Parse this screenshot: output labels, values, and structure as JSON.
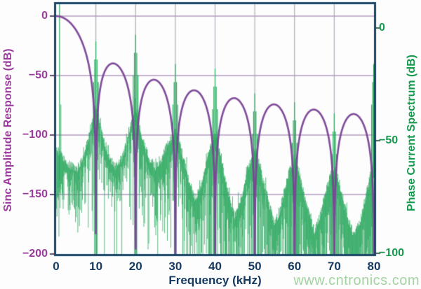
{
  "figure": {
    "watermark": "www.cntronics.com",
    "colors": {
      "plot_border": "#1c4668",
      "vertical_grid": "#a9aeb6",
      "horizontal_grid": "#b29abe",
      "left_text": "#9a3a9c",
      "right_text": "#169a4e",
      "x_text": "#16395f",
      "watermark_text": "#a3d3a2",
      "sinc_curve": "#7a4596",
      "spectrum_curve": "#2ba85e"
    }
  },
  "chart_data": {
    "type": "line",
    "title": "",
    "xlabel": "Frequency (kHz)",
    "xlim": [
      0,
      80
    ],
    "x_ticks": [
      0,
      10,
      20,
      30,
      40,
      50,
      60,
      70,
      80
    ],
    "grid": {
      "vertical_khz": [
        10,
        20,
        30,
        40,
        50,
        60,
        70
      ],
      "horizontal_left_db": [
        0,
        -50,
        -100,
        -150
      ]
    },
    "left_axis": {
      "label": "Sinc Amplitude Response (dB)",
      "ticks": [
        0,
        -50,
        -100,
        -150,
        -200
      ],
      "lim": [
        -200,
        0
      ],
      "color": "#9a3a9c"
    },
    "right_axis": {
      "label": "Phase Current Spectrum (dB)",
      "ticks": [
        0,
        -50,
        -100
      ],
      "lim": [
        -100,
        0
      ],
      "color": "#169a4e"
    },
    "series": [
      {
        "name": "sinc-amplitude-response",
        "axis": "left",
        "color": "#7a4596",
        "model": "sinc_envelope_db",
        "order": 3,
        "null_spacing_khz": 10,
        "null_frequencies_khz": [
          10,
          20,
          30,
          40,
          50,
          60,
          70,
          80
        ],
        "lobe_peaks_db": [
          [
            0,
            0
          ],
          [
            15,
            -40.4
          ],
          [
            25,
            -53.7
          ],
          [
            35,
            -62.4
          ],
          [
            45,
            -69.0
          ],
          [
            55,
            -74.3
          ],
          [
            65,
            -78.7
          ],
          [
            75,
            -82.4
          ]
        ]
      },
      {
        "name": "phase-current-spectrum",
        "axis": "right",
        "color": "#2ba85e",
        "model": "noisy_spectrum",
        "fundamental": {
          "f_khz": 0.85,
          "db": 11
        },
        "harmonics": [
          [
            10,
            -6
          ],
          [
            20,
            -3
          ],
          [
            30,
            -16
          ],
          [
            40,
            -18
          ],
          [
            50,
            -29
          ],
          [
            60,
            -33
          ],
          [
            70,
            -38
          ],
          [
            80,
            -16
          ]
        ],
        "noise_envelope_db": [
          [
            0.2,
            -54
          ],
          [
            1,
            -56
          ],
          [
            2,
            -58
          ],
          [
            3,
            -60
          ],
          [
            5,
            -63
          ],
          [
            6.5,
            -59
          ],
          [
            8,
            -50
          ],
          [
            9,
            -42
          ],
          [
            9.6,
            -37
          ],
          [
            10,
            -34
          ],
          [
            10.4,
            -37
          ],
          [
            11,
            -43
          ],
          [
            12,
            -50
          ],
          [
            13.5,
            -57
          ],
          [
            15,
            -62
          ],
          [
            16.5,
            -58
          ],
          [
            18,
            -49
          ],
          [
            19,
            -42
          ],
          [
            19.6,
            -38
          ],
          [
            20,
            -36
          ],
          [
            20.4,
            -38
          ],
          [
            21,
            -44
          ],
          [
            22,
            -51
          ],
          [
            23.5,
            -58
          ],
          [
            25,
            -62
          ],
          [
            26.5,
            -58
          ],
          [
            28,
            -52
          ],
          [
            29,
            -49
          ],
          [
            29.6,
            -47
          ],
          [
            30,
            -46
          ],
          [
            30.4,
            -47
          ],
          [
            31,
            -50
          ],
          [
            32,
            -58
          ],
          [
            33.5,
            -68
          ],
          [
            35,
            -76
          ],
          [
            36.5,
            -70
          ],
          [
            38,
            -58
          ],
          [
            39,
            -52
          ],
          [
            39.6,
            -49
          ],
          [
            40,
            -48
          ],
          [
            40.4,
            -49
          ],
          [
            41,
            -53
          ],
          [
            42,
            -62
          ],
          [
            43.5,
            -74
          ],
          [
            45,
            -84
          ],
          [
            46.5,
            -76
          ],
          [
            48,
            -64
          ],
          [
            49,
            -58
          ],
          [
            49.6,
            -55
          ],
          [
            50,
            -54
          ],
          [
            50.4,
            -55
          ],
          [
            51,
            -59
          ],
          [
            52,
            -67
          ],
          [
            53.5,
            -78
          ],
          [
            55,
            -87
          ],
          [
            56.5,
            -80
          ],
          [
            58,
            -68
          ],
          [
            59,
            -62
          ],
          [
            59.6,
            -59
          ],
          [
            60,
            -58
          ],
          [
            60.4,
            -59
          ],
          [
            61,
            -63
          ],
          [
            62,
            -71
          ],
          [
            63.5,
            -82
          ],
          [
            65,
            -90
          ],
          [
            66.5,
            -83
          ],
          [
            68,
            -72
          ],
          [
            69,
            -66
          ],
          [
            69.6,
            -63
          ],
          [
            70,
            -62
          ],
          [
            70.4,
            -63
          ],
          [
            71,
            -67
          ],
          [
            72,
            -74
          ],
          [
            73.5,
            -85
          ],
          [
            75,
            -92
          ],
          [
            76.5,
            -86
          ],
          [
            78,
            -74
          ],
          [
            79,
            -66
          ],
          [
            79.6,
            -62
          ],
          [
            80,
            -60
          ]
        ],
        "noise": {
          "seed": 20,
          "base_depth_db": 10,
          "depth_slope_db_per_khz": 0.18,
          "floor_db": -100,
          "deep_drop_prob_low": 0.04,
          "deep_drop_prob_high": 0.28,
          "high_f_threshold_khz": 38
        }
      }
    ]
  }
}
